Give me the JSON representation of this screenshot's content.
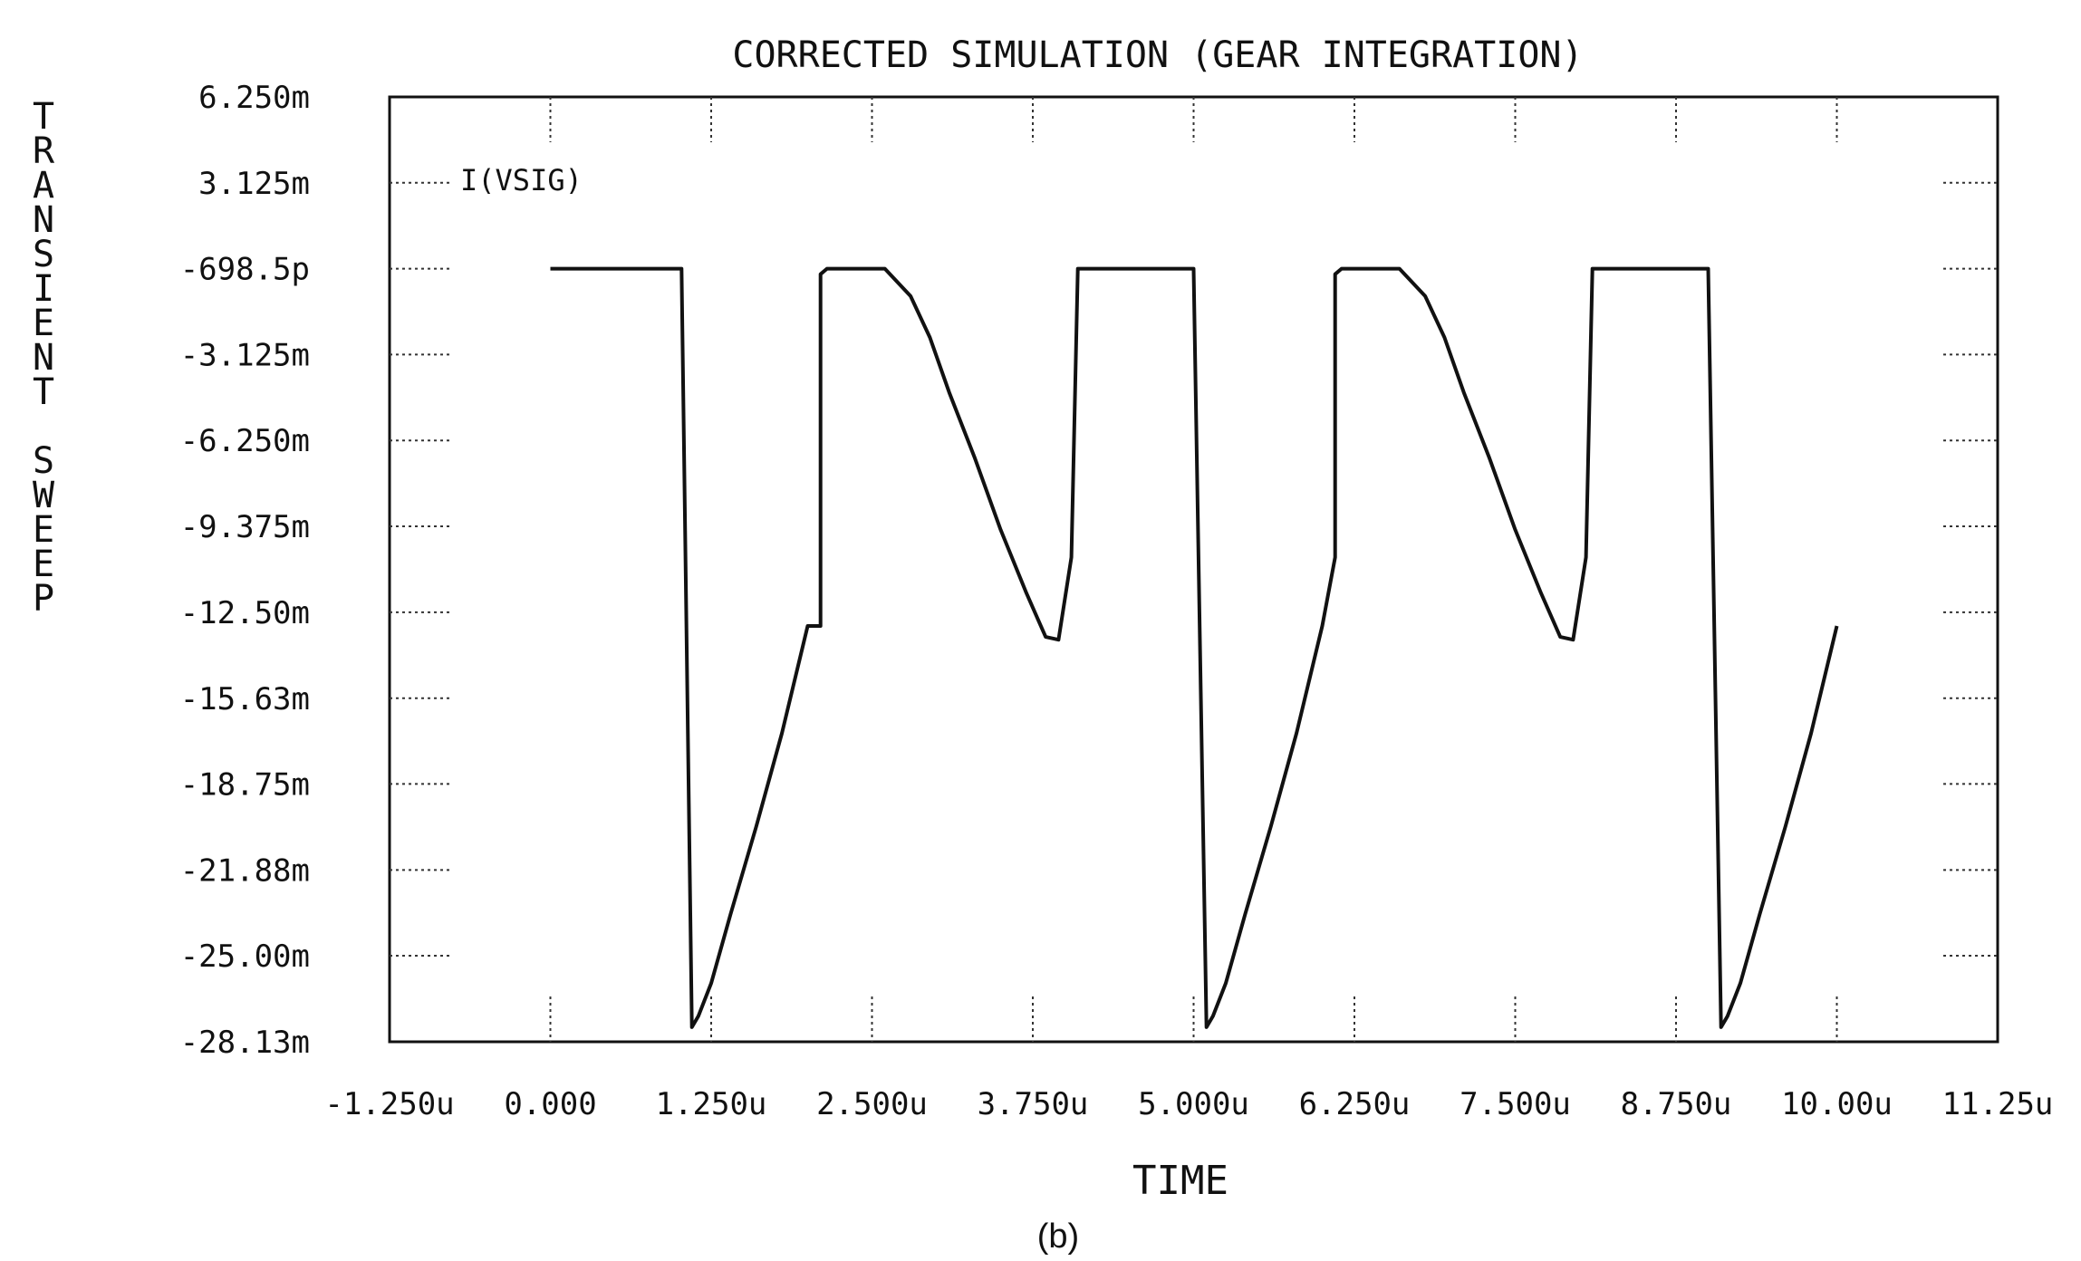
{
  "chart_data": {
    "type": "line",
    "title": "CORRECTED SIMULATION (GEAR INTEGRATION)",
    "xlabel": "TIME",
    "ylabel": "TRANSIENT SWEEP",
    "series_label": "I(VSIG)",
    "caption": "(b)",
    "x_unit": "s",
    "y_unit": "A",
    "xlim": [
      -1.25e-06,
      1.125e-05
    ],
    "ylim": [
      -0.02813,
      0.00625
    ],
    "grid": false,
    "x_ticks": [
      {
        "value": -1.25e-06,
        "label": "-1.250u"
      },
      {
        "value": 0,
        "label": "0.000"
      },
      {
        "value": 1.25e-06,
        "label": "1.250u"
      },
      {
        "value": 2.5e-06,
        "label": "2.500u"
      },
      {
        "value": 3.75e-06,
        "label": "3.750u"
      },
      {
        "value": 5e-06,
        "label": "5.000u"
      },
      {
        "value": 6.25e-06,
        "label": "6.250u"
      },
      {
        "value": 7.5e-06,
        "label": "7.500u"
      },
      {
        "value": 8.75e-06,
        "label": "8.750u"
      },
      {
        "value": 1e-05,
        "label": "10.00u"
      },
      {
        "value": 1.125e-05,
        "label": "11.25u"
      }
    ],
    "y_ticks": [
      {
        "value": 0.00625,
        "label": "6.250m"
      },
      {
        "value": 0.003125,
        "label": "3.125m"
      },
      {
        "value": -6.985e-10,
        "label": "-698.5p"
      },
      {
        "value": -0.003125,
        "label": "-3.125m"
      },
      {
        "value": -0.00625,
        "label": "-6.250m"
      },
      {
        "value": -0.009375,
        "label": "-9.375m"
      },
      {
        "value": -0.0125,
        "label": "-12.50m"
      },
      {
        "value": -0.01563,
        "label": "-15.63m"
      },
      {
        "value": -0.01875,
        "label": "-18.75m"
      },
      {
        "value": -0.02188,
        "label": "-21.88m"
      },
      {
        "value": -0.025,
        "label": "-25.00m"
      },
      {
        "value": -0.02813,
        "label": "-28.13m"
      }
    ],
    "series": [
      {
        "name": "I(VSIG)",
        "x_us": [
          0.0,
          1.02,
          1.1,
          1.15,
          1.25,
          1.4,
          1.6,
          1.8,
          2.0,
          2.1,
          2.1,
          2.1,
          2.15,
          2.4,
          2.6,
          2.8,
          2.95,
          3.1,
          3.3,
          3.5,
          3.7,
          3.85,
          3.95,
          4.05,
          4.1,
          5.0,
          5.1,
          5.15,
          5.25,
          5.4,
          5.6,
          5.8,
          6.0,
          6.1,
          6.1,
          6.15,
          6.4,
          6.6,
          6.8,
          6.95,
          7.1,
          7.3,
          7.5,
          7.7,
          7.85,
          7.95,
          8.05,
          8.1,
          9.0,
          9.1,
          9.15,
          9.25,
          9.4,
          9.6,
          9.8,
          10.0
        ],
        "y_mA": [
          0.0,
          0.0,
          -27.6,
          -27.2,
          -26.0,
          -23.5,
          -20.3,
          -16.9,
          -13.0,
          -13.0,
          -10.5,
          -0.2,
          0.0,
          0.0,
          0.0,
          -1.0,
          -2.5,
          -4.5,
          -6.9,
          -9.5,
          -11.8,
          -13.4,
          -13.5,
          -10.5,
          0.0,
          0.0,
          -27.6,
          -27.2,
          -26.0,
          -23.5,
          -20.3,
          -16.9,
          -13.0,
          -10.5,
          -0.2,
          0.0,
          0.0,
          0.0,
          -1.0,
          -2.5,
          -4.5,
          -6.9,
          -9.5,
          -11.8,
          -13.4,
          -13.5,
          -10.5,
          0.0,
          0.0,
          -27.6,
          -27.2,
          -26.0,
          -23.5,
          -20.3,
          -16.9,
          -13.0
        ]
      }
    ]
  }
}
